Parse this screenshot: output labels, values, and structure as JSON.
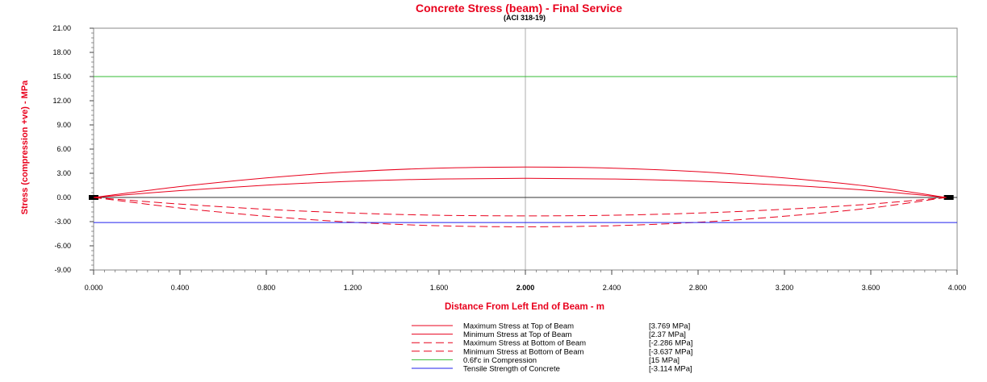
{
  "chart_data": {
    "type": "line",
    "title": "Concrete Stress (beam) - Final Service",
    "subtitle": "(ACI 318-19)",
    "xlabel": "Distance From Left End of Beam - m",
    "ylabel": "Stress (compression +ve) - MPa",
    "xlim": [
      0,
      4
    ],
    "ylim": [
      -9,
      21
    ],
    "x_ticks": [
      "0.000",
      "0.400",
      "0.800",
      "1.200",
      "1.600",
      "2.000",
      "2.400",
      "2.800",
      "3.200",
      "3.600",
      "4.000"
    ],
    "y_ticks": [
      "21.00",
      "18.00",
      "15.00",
      "12.00",
      "9.00",
      "6.00",
      "3.00",
      "0.00",
      "-3.00",
      "-6.00",
      "-9.00"
    ],
    "grid": true,
    "legend_position": "bottom",
    "series": [
      {
        "name": "Maximum Stress at Top of Beam",
        "value_label": "[3.769  MPa]",
        "color": "#e8001c",
        "dash": "solid",
        "x": [
          0.0,
          0.4,
          0.8,
          1.2,
          1.6,
          2.0,
          2.4,
          2.8,
          3.2,
          3.6,
          3.95
        ],
        "y": [
          0.0,
          1.35,
          2.42,
          3.2,
          3.64,
          3.769,
          3.64,
          3.2,
          2.42,
          1.35,
          0.0
        ]
      },
      {
        "name": "Minimum Stress at Top of Beam",
        "value_label": "[2.37  MPa]",
        "color": "#e8001c",
        "dash": "solid",
        "x": [
          0.0,
          0.4,
          0.8,
          1.2,
          1.6,
          2.0,
          2.4,
          2.8,
          3.2,
          3.6,
          3.95
        ],
        "y": [
          0.0,
          0.85,
          1.52,
          2.01,
          2.29,
          2.37,
          2.29,
          2.01,
          1.52,
          0.85,
          0.0
        ]
      },
      {
        "name": "Maximum Stress at Bottom of Beam",
        "value_label": "[-2.286  MPa]",
        "color": "#e8001c",
        "dash": "dashed",
        "x": [
          0.0,
          0.4,
          0.8,
          1.2,
          1.6,
          2.0,
          2.4,
          2.8,
          3.2,
          3.6,
          3.95
        ],
        "y": [
          0.0,
          -0.82,
          -1.47,
          -1.94,
          -2.21,
          -2.286,
          -2.21,
          -1.94,
          -1.47,
          -0.82,
          0.0
        ]
      },
      {
        "name": "Minimum Stress at Bottom of Beam",
        "value_label": "[-3.637  MPa]",
        "color": "#e8001c",
        "dash": "dashed",
        "x": [
          0.0,
          0.4,
          0.8,
          1.2,
          1.6,
          2.0,
          2.4,
          2.8,
          3.2,
          3.6,
          3.95
        ],
        "y": [
          0.0,
          -1.31,
          -2.33,
          -3.08,
          -3.51,
          -3.637,
          -3.51,
          -3.08,
          -2.33,
          -1.31,
          0.0
        ]
      },
      {
        "name": "0.6f'c in Compression",
        "value_label": "[15  MPa]",
        "color": "#33bb33",
        "dash": "solid",
        "x": [
          0.0,
          4.0
        ],
        "y": [
          15,
          15
        ]
      },
      {
        "name": "Tensile Strength of Concrete",
        "value_label": "[-3.114  MPa]",
        "color": "#2222ee",
        "dash": "solid",
        "x": [
          0.0,
          4.0
        ],
        "y": [
          -3.114,
          -3.114
        ]
      }
    ]
  }
}
